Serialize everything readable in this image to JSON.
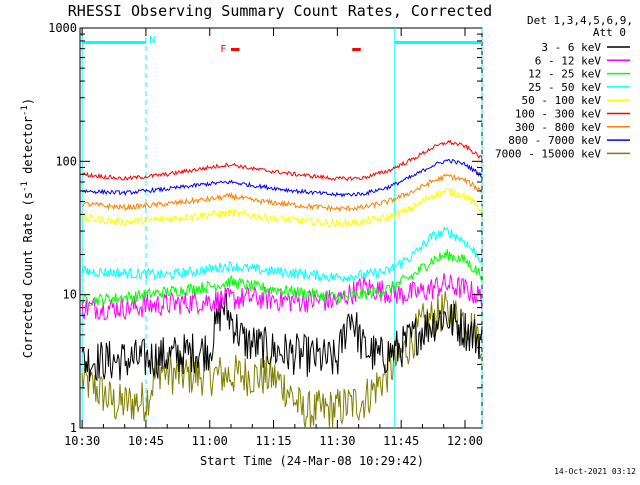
{
  "chart_data": {
    "type": "line",
    "title": "RHESSI Observing Summary Count Rates, Corrected",
    "xlabel": "Start Time (24-Mar-08 10:29:42)",
    "ylabel_main": "Corrected Count Rate (s",
    "ylabel_sup1": "-1",
    "ylabel_mid": " detector",
    "ylabel_sup2": "-1",
    "ylabel_end": ")",
    "yscale": "log",
    "ylim": [
      1,
      1000
    ],
    "xlim_minutes": [
      -0.5,
      94
    ],
    "xticks": [
      {
        "t": 0,
        "label": "10:30"
      },
      {
        "t": 15,
        "label": "10:45"
      },
      {
        "t": 30,
        "label": "11:00"
      },
      {
        "t": 45,
        "label": "11:15"
      },
      {
        "t": 60,
        "label": "11:30"
      },
      {
        "t": 75,
        "label": "11:45"
      },
      {
        "t": 90,
        "label": "12:00"
      }
    ],
    "yticks": [
      {
        "v": 1,
        "label": "1"
      },
      {
        "v": 10,
        "label": "10"
      },
      {
        "v": 100,
        "label": "100"
      },
      {
        "v": 1000,
        "label": "1000"
      }
    ],
    "legend_header": [
      "Det 1,3,4,5,6,9,",
      "Att 0"
    ],
    "series": [
      {
        "name": "3 - 6 keV",
        "color": "#000000",
        "t": [
          0,
          8,
          15,
          22,
          30,
          33,
          38,
          45,
          52,
          60,
          63,
          66,
          70,
          75,
          80,
          85,
          90,
          94
        ],
        "values": [
          3.2,
          3.2,
          3.3,
          3.5,
          3.9,
          8.5,
          4.5,
          3.8,
          3.5,
          3.2,
          7.5,
          4.0,
          3.4,
          4.0,
          5.5,
          7.0,
          5.5,
          4.5
        ]
      },
      {
        "name": "6 - 12 keV",
        "color": "#ff00ff",
        "t": [
          0,
          10,
          20,
          30,
          40,
          50,
          60,
          66,
          75,
          80,
          85,
          90,
          94
        ],
        "values": [
          8.0,
          8.0,
          8.5,
          9.0,
          9.5,
          9.0,
          9.0,
          11.5,
          10.0,
          10.5,
          12.0,
          11.0,
          9.5
        ]
      },
      {
        "name": "12 - 25 keV",
        "color": "#00ff00",
        "t": [
          0,
          10,
          20,
          30,
          35,
          40,
          50,
          60,
          66,
          72,
          78,
          82,
          86,
          90,
          94
        ],
        "values": [
          9.0,
          9.5,
          10.5,
          11.5,
          12.5,
          11.5,
          10.5,
          9.5,
          10.0,
          11.0,
          14.0,
          18.0,
          20.0,
          18.0,
          14.0
        ]
      },
      {
        "name": "25 - 50 keV",
        "color": "#00ffff",
        "t": [
          0,
          10,
          20,
          30,
          35,
          40,
          50,
          60,
          66,
          72,
          78,
          82,
          86,
          90,
          94
        ],
        "values": [
          15.0,
          14.5,
          14.0,
          15.5,
          16.5,
          15.5,
          14.5,
          13.5,
          14.0,
          15.0,
          20.0,
          27.0,
          30.0,
          25.0,
          18.0
        ]
      },
      {
        "name": "50 - 100 keV",
        "color": "#ffff00",
        "t": [
          0,
          10,
          20,
          30,
          35,
          40,
          50,
          60,
          66,
          72,
          78,
          82,
          86,
          90,
          94
        ],
        "values": [
          38.0,
          35.0,
          37.0,
          40.0,
          41.0,
          39.0,
          36.0,
          34.0,
          35.0,
          38.0,
          45.0,
          55.0,
          60.0,
          55.0,
          43.0
        ]
      },
      {
        "name": "100 - 300 keV",
        "color": "#ff0000",
        "t": [
          0,
          10,
          20,
          30,
          35,
          40,
          50,
          60,
          66,
          72,
          78,
          82,
          86,
          90,
          94
        ],
        "values": [
          80.0,
          74.0,
          80.0,
          90.0,
          95.0,
          88.0,
          80.0,
          74.0,
          75.0,
          85.0,
          105.0,
          125.0,
          140.0,
          130.0,
          105.0
        ]
      },
      {
        "name": "300 - 800 keV",
        "color": "#ff8000",
        "t": [
          0,
          10,
          20,
          30,
          35,
          40,
          50,
          60,
          66,
          72,
          78,
          82,
          86,
          90,
          94
        ],
        "values": [
          48.0,
          45.0,
          48.0,
          52.0,
          55.0,
          51.0,
          47.0,
          44.0,
          45.0,
          50.0,
          60.0,
          70.0,
          78.0,
          72.0,
          60.0
        ]
      },
      {
        "name": "800 - 7000 keV",
        "color": "#0000ff",
        "t": [
          0,
          10,
          20,
          30,
          35,
          40,
          50,
          60,
          66,
          72,
          78,
          82,
          86,
          90,
          94
        ],
        "values": [
          60.0,
          58.0,
          62.0,
          68.0,
          70.0,
          66.0,
          60.0,
          56.0,
          57.0,
          64.0,
          78.0,
          92.0,
          102.0,
          95.0,
          78.0
        ]
      },
      {
        "name": "7000 - 15000 keV",
        "color": "#808000",
        "t": [
          0,
          3,
          8,
          15,
          18,
          22,
          30,
          38,
          45,
          48,
          52,
          60,
          66,
          70,
          75,
          80,
          85,
          90,
          94
        ],
        "values": [
          2.3,
          2.0,
          1.5,
          1.6,
          2.8,
          2.5,
          2.5,
          2.5,
          2.4,
          2.0,
          1.3,
          1.4,
          1.6,
          2.2,
          3.5,
          6.0,
          7.5,
          6.5,
          4.5
        ]
      }
    ],
    "flag_bars": [
      {
        "name": "SAA",
        "color": "#00ffff",
        "ranges": [
          [
            0,
            15
          ],
          [
            73.5,
            94
          ]
        ]
      },
      {
        "name": "F",
        "color": "#ff0000",
        "ranges": [
          [
            35,
            37
          ],
          [
            63.5,
            65.5
          ]
        ]
      }
    ],
    "flag_labels": [
      {
        "text": "N",
        "t": 15.8,
        "color": "#00ffff"
      },
      {
        "text": "F",
        "t": 32.5,
        "color": "#ff0000"
      }
    ],
    "night_lines": {
      "color": "#00ffff",
      "solid": [
        0,
        73.5
      ],
      "dashed": [
        15,
        94
      ]
    },
    "timestamp": "14-Oct-2021 03:12"
  }
}
